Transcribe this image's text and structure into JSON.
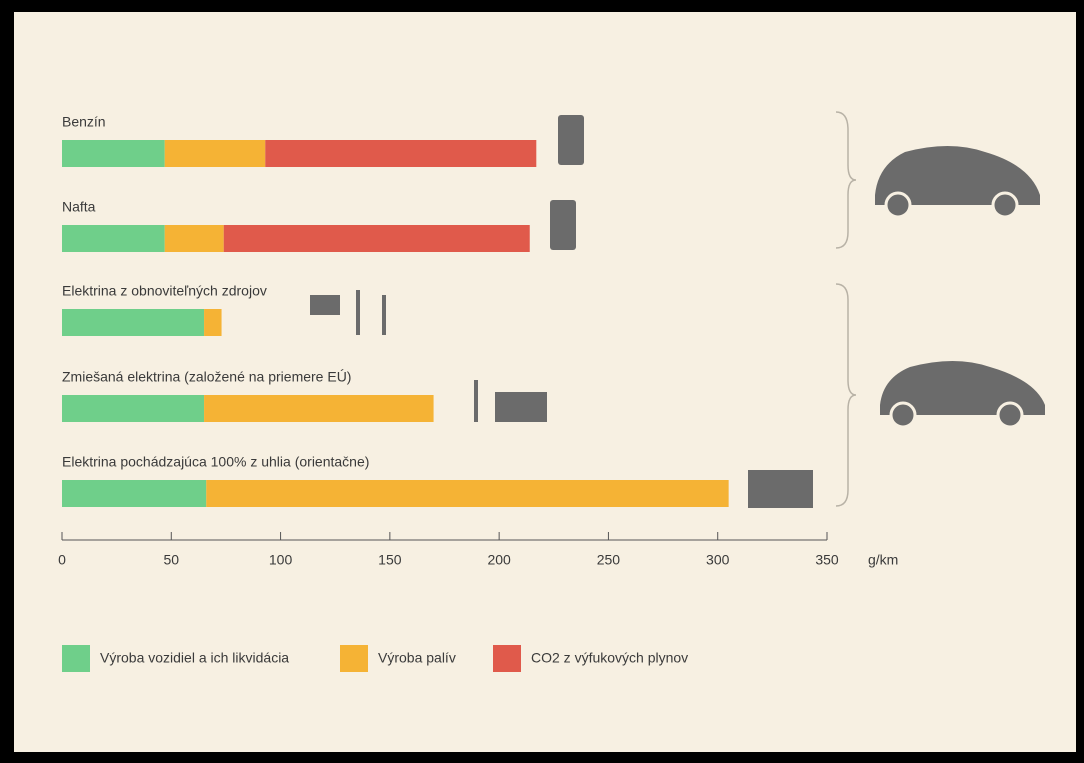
{
  "chart_data": {
    "type": "stacked_barh",
    "categories": [
      "Benzín",
      "Nafta",
      "Elektrina z obnoviteľných zdrojov",
      "Zmiešaná elektrina (založené na priemere EÚ)",
      "Elektrina pochádzajúca 100% z uhlia (orientačne)"
    ],
    "series": [
      {
        "name": "Výroba vozidiel a ich likvidácia",
        "color": "#6fcf8a",
        "values": [
          47,
          47,
          65,
          65,
          66
        ]
      },
      {
        "name": "Výroba palív",
        "color": "#f5b335",
        "values": [
          46,
          27,
          8,
          105,
          239
        ]
      },
      {
        "name": "CO2 z výfukových plynov",
        "color": "#e05a4b",
        "values": [
          124,
          140,
          null,
          null,
          null
        ]
      }
    ],
    "xlim": [
      0,
      350
    ],
    "xticks": [
      0,
      50,
      100,
      150,
      200,
      250,
      300,
      350
    ],
    "x_unit": "g/km",
    "legend": "bottom"
  }
}
